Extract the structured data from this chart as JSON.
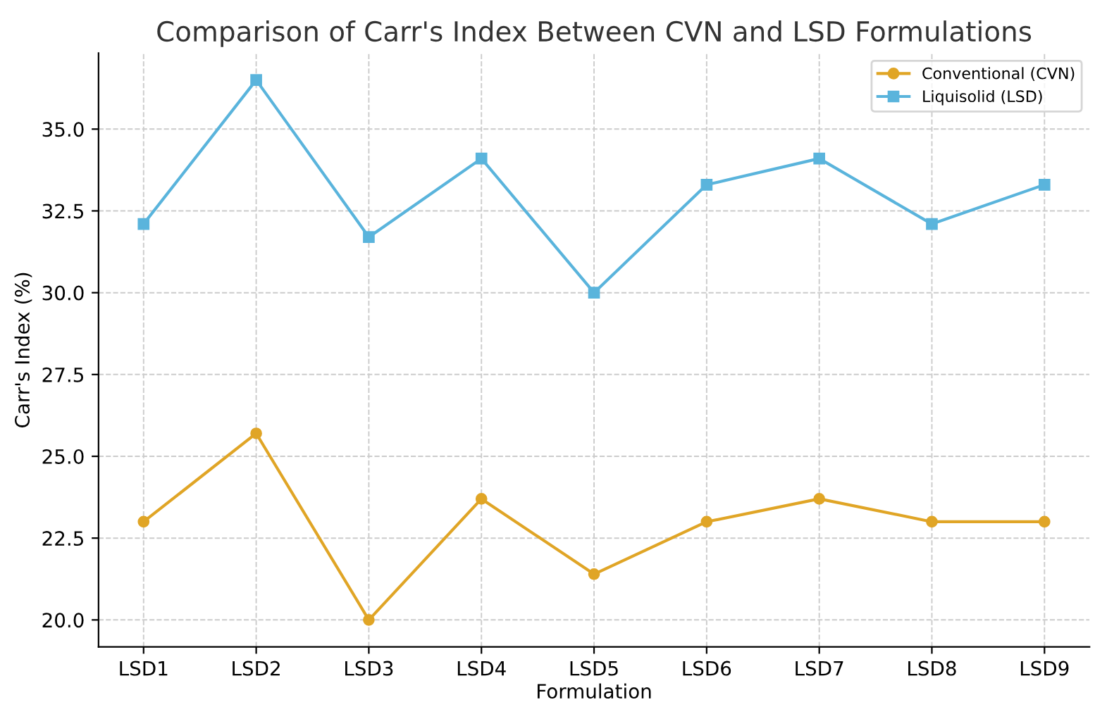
{
  "chart_data": {
    "type": "line",
    "title": "Comparison of Carr's Index Between CVN and LSD Formulations",
    "xlabel": "Formulation",
    "ylabel": "Carr's Index (%)",
    "categories": [
      "LSD1",
      "LSD2",
      "LSD3",
      "LSD4",
      "LSD5",
      "LSD6",
      "LSD7",
      "LSD8",
      "LSD9"
    ],
    "series": [
      {
        "name": "Conventional (CVN)",
        "color": "#e0a526",
        "marker": "circle",
        "values": [
          23.0,
          25.7,
          20.0,
          23.7,
          21.4,
          23.0,
          23.7,
          23.0,
          23.0
        ]
      },
      {
        "name": "Liquisolid (LSD)",
        "color": "#5ab4dc",
        "marker": "square",
        "values": [
          32.1,
          36.5,
          31.7,
          34.1,
          30.0,
          33.3,
          34.1,
          32.1,
          33.3
        ]
      }
    ],
    "ylim": [
      19.175,
      37.325
    ],
    "yticks": [
      {
        "value": 20,
        "label": "20.0"
      },
      {
        "value": 22.5,
        "label": "22.5"
      },
      {
        "value": 25,
        "label": "25.0"
      },
      {
        "value": 27.5,
        "label": "27.5"
      },
      {
        "value": 30,
        "label": "30.0"
      },
      {
        "value": 32.5,
        "label": "32.5"
      },
      {
        "value": 35,
        "label": "35.0"
      }
    ],
    "grid": true,
    "legend": "top right",
    "line_style": "solid"
  }
}
